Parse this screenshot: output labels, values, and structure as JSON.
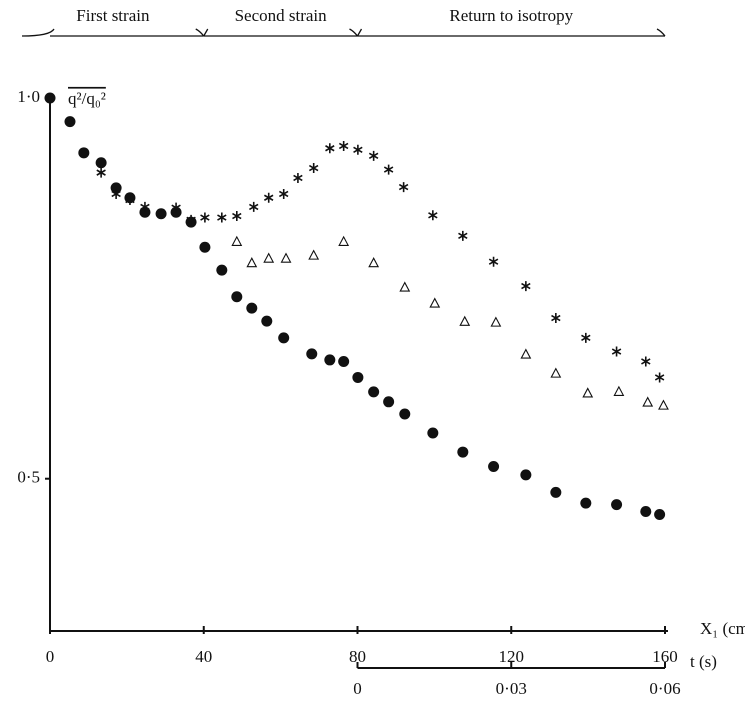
{
  "chart_data": {
    "type": "scatter",
    "ylabel": "q²/q₀²",
    "xlabel": "X₁ (cm)",
    "x2label": "t (s)",
    "xlim": [
      0,
      160
    ],
    "xticks": [
      0,
      40,
      80,
      120,
      160
    ],
    "ylim": [
      0.3,
      1.0
    ],
    "yticks": [
      {
        "value": 1.0,
        "label": "1·0"
      },
      {
        "value": 0.5,
        "label": "0·5"
      }
    ],
    "x2lim": [
      0,
      0.06
    ],
    "x2ticks": [
      0,
      {
        "value": 0.03,
        "label": "0·03"
      },
      {
        "value": 0.06,
        "label": "0·06"
      }
    ],
    "phases": [
      {
        "label": "First strain",
        "range": [
          0,
          40
        ]
      },
      {
        "label": "Second strain",
        "range": [
          40,
          80
        ]
      },
      {
        "label": "Return to isotropy",
        "range": [
          80,
          160
        ]
      }
    ],
    "series": [
      {
        "marker": "dot",
        "color": "#111111",
        "x": [
          0,
          5.2,
          8.8,
          13.3,
          17.2,
          20.8,
          24.7,
          28.9,
          32.8,
          36.7,
          40.3,
          44.7,
          48.6,
          52.5,
          56.4,
          60.8,
          68.1,
          72.8,
          76.4,
          80.1,
          84.2,
          88.1,
          92.3,
          99.6,
          107.4,
          115.4,
          123.8,
          131.6,
          139.4,
          147.4,
          155.0,
          158.6
        ],
        "values": [
          1.0,
          0.969,
          0.928,
          0.915,
          0.882,
          0.869,
          0.85,
          0.848,
          0.85,
          0.837,
          0.804,
          0.774,
          0.739,
          0.724,
          0.707,
          0.685,
          0.664,
          0.656,
          0.654,
          0.633,
          0.614,
          0.601,
          0.585,
          0.56,
          0.535,
          0.516,
          0.505,
          0.482,
          0.468,
          0.466,
          0.457,
          0.453
        ]
      },
      {
        "marker": "star",
        "color": "#111111",
        "x": [
          0,
          5.2,
          8.8,
          13.3,
          17.2,
          20.8,
          24.7,
          28.9,
          32.8,
          36.7,
          40.3,
          44.7,
          48.6,
          53.0,
          56.9,
          60.8,
          64.5,
          68.6,
          72.8,
          76.4,
          80.1,
          84.2,
          88.1,
          92.0,
          99.6,
          107.4,
          115.4,
          123.8,
          131.6,
          139.4,
          147.4,
          155.0,
          158.6
        ],
        "values": [
          1.0,
          0.969,
          0.928,
          0.902,
          0.874,
          0.866,
          0.857,
          0.848,
          0.856,
          0.84,
          0.843,
          0.843,
          0.845,
          0.857,
          0.869,
          0.874,
          0.895,
          0.908,
          0.934,
          0.937,
          0.932,
          0.924,
          0.906,
          0.883,
          0.846,
          0.819,
          0.785,
          0.753,
          0.711,
          0.685,
          0.667,
          0.654,
          0.633
        ]
      },
      {
        "marker": "triangle",
        "color": "#111111",
        "x": [
          48.6,
          52.5,
          56.9,
          61.4,
          68.6,
          76.4,
          84.2,
          92.3,
          100.1,
          107.9,
          116.0,
          123.8,
          131.6,
          139.9,
          148.0,
          155.5,
          159.6
        ],
        "values": [
          0.811,
          0.783,
          0.789,
          0.789,
          0.793,
          0.811,
          0.783,
          0.751,
          0.73,
          0.706,
          0.705,
          0.663,
          0.638,
          0.612,
          0.614,
          0.6,
          0.596
        ]
      }
    ]
  }
}
